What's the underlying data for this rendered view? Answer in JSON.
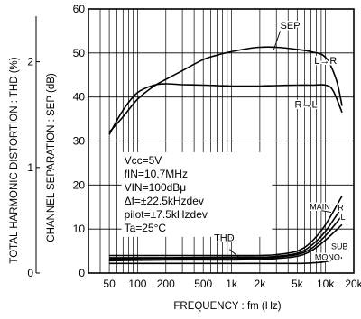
{
  "chart_data": {
    "type": "line",
    "x_scale": "log",
    "xlim": [
      30,
      20000
    ],
    "xticks": [
      50,
      100,
      200,
      500,
      1000,
      2000,
      5000,
      10000,
      20000
    ],
    "xtick_labels": [
      "50",
      "100",
      "200",
      "500",
      "1k",
      "2k",
      "5k",
      "10k",
      "20k"
    ],
    "xlabel": "FREQUENCY : fm (Hz)",
    "ylim_right": [
      0,
      60
    ],
    "yticks_right": [
      0,
      10,
      20,
      30,
      40,
      50,
      60
    ],
    "ylabel_right": "CHANNEL SEPARATION : SEP (dB)",
    "ylim_left": [
      0,
      2.5
    ],
    "yticks_left": [
      0,
      1,
      2
    ],
    "ylabel_left": "TOTAL HARMONIC DISTORTION : THD (%)",
    "grid": true,
    "conditions": [
      "Vcc=5V",
      "fIN=10.7MHz",
      "VIN=100dBμ",
      "Δf=±22.5kHzdev",
      "pilot=±7.5kHzdev",
      "Ta=25°C"
    ],
    "group_labels": [
      "SEP",
      "THD"
    ],
    "series": [
      {
        "name": "L→R",
        "group": "SEP",
        "color": "#000000",
        "x": [
          50,
          70,
          100,
          150,
          200,
          300,
          500,
          700,
          1000,
          1500,
          2000,
          3000,
          5000,
          7000,
          10000,
          13000,
          15000
        ],
        "y": [
          32,
          35.5,
          39.5,
          42.5,
          44,
          46,
          48.5,
          49.5,
          50.3,
          51,
          51.3,
          51.3,
          50.8,
          50.3,
          49,
          44,
          38
        ]
      },
      {
        "name": "R→L",
        "group": "SEP",
        "color": "#000000",
        "x": [
          50,
          70,
          100,
          150,
          200,
          300,
          500,
          700,
          1000,
          2000,
          3000,
          5000,
          7000,
          10000,
          12000,
          15000
        ],
        "y": [
          31.5,
          37,
          41,
          42.7,
          43,
          42.8,
          42.7,
          42.6,
          42.5,
          42.5,
          42.6,
          42.7,
          42.7,
          42.7,
          41.5,
          36.5
        ]
      },
      {
        "name": "MAIN",
        "group": "THD",
        "color": "#000000",
        "x": [
          50,
          200,
          1000,
          2000,
          3000,
          5000,
          7000,
          10000,
          15000
        ],
        "y": [
          4,
          4,
          4,
          4,
          4.2,
          5,
          7,
          11,
          17.5
        ]
      },
      {
        "name": "R",
        "group": "THD",
        "color": "#000000",
        "x": [
          50,
          200,
          1000,
          2000,
          3000,
          5000,
          7000,
          10000,
          15000
        ],
        "y": [
          3.5,
          3.5,
          3.6,
          3.6,
          3.8,
          4.5,
          6.2,
          9.5,
          15
        ]
      },
      {
        "name": "L",
        "group": "THD",
        "color": "#000000",
        "x": [
          50,
          200,
          1000,
          2000,
          3000,
          5000,
          7000,
          10000,
          15000
        ],
        "y": [
          3.2,
          3.3,
          3.3,
          3.4,
          3.6,
          4.2,
          5.5,
          8.5,
          13
        ]
      },
      {
        "name": "SUB",
        "group": "THD",
        "color": "#000000",
        "x": [
          50,
          200,
          1000,
          2000,
          3000,
          5000,
          7000,
          10000,
          15000
        ],
        "y": [
          2.8,
          3,
          3,
          3.1,
          3.3,
          3.8,
          5,
          7.5,
          11
        ]
      },
      {
        "name": "MONO",
        "group": "THD",
        "color": "#000000",
        "x": [
          50,
          200,
          1000,
          2000,
          5000,
          7000,
          10000,
          15000
        ],
        "y": [
          2.2,
          2.2,
          2.2,
          2.2,
          2.2,
          2.3,
          2.6,
          3.5
        ]
      }
    ]
  }
}
